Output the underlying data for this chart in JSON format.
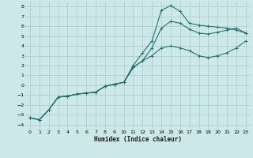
{
  "title": "",
  "xlabel": "Humidex (Indice chaleur)",
  "bg_color": "#cce8e8",
  "grid_color": "#aacccc",
  "line_color": "#1a6b6b",
  "xlim": [
    -0.5,
    23.5
  ],
  "ylim": [
    -4.5,
    8.5
  ],
  "xticks": [
    0,
    1,
    2,
    3,
    4,
    5,
    6,
    7,
    8,
    9,
    10,
    11,
    12,
    13,
    14,
    15,
    16,
    17,
    18,
    19,
    20,
    21,
    22,
    23
  ],
  "yticks": [
    -4,
    -3,
    -2,
    -1,
    0,
    1,
    2,
    3,
    4,
    5,
    6,
    7,
    8
  ],
  "line1_x": [
    0,
    1,
    2,
    3,
    4,
    5,
    6,
    7,
    8,
    9,
    10,
    11,
    12,
    13,
    14,
    15,
    16,
    17,
    18,
    19,
    20,
    21,
    22,
    23
  ],
  "line1_y": [
    -3.3,
    -3.5,
    -2.5,
    -1.2,
    -1.1,
    -0.9,
    -0.8,
    -0.7,
    -0.1,
    0.1,
    0.3,
    2.0,
    3.3,
    4.5,
    7.6,
    8.1,
    7.5,
    6.3,
    6.1,
    6.0,
    5.9,
    5.8,
    5.6,
    5.3
  ],
  "line2_x": [
    0,
    1,
    2,
    3,
    4,
    5,
    6,
    7,
    8,
    9,
    10,
    11,
    12,
    13,
    14,
    15,
    16,
    17,
    18,
    19,
    20,
    21,
    22,
    23
  ],
  "line2_y": [
    -3.3,
    -3.5,
    -2.5,
    -1.2,
    -1.1,
    -0.9,
    -0.8,
    -0.7,
    -0.1,
    0.1,
    0.3,
    1.8,
    2.5,
    3.8,
    5.8,
    6.5,
    6.3,
    5.7,
    5.3,
    5.2,
    5.4,
    5.6,
    5.8,
    5.3
  ],
  "line3_x": [
    0,
    1,
    2,
    3,
    4,
    5,
    6,
    7,
    8,
    9,
    10,
    11,
    12,
    13,
    14,
    15,
    16,
    17,
    18,
    19,
    20,
    21,
    22,
    23
  ],
  "line3_y": [
    -3.3,
    -3.5,
    -2.5,
    -1.2,
    -1.1,
    -0.9,
    -0.8,
    -0.7,
    -0.1,
    0.1,
    0.3,
    1.8,
    2.5,
    3.0,
    3.8,
    4.0,
    3.8,
    3.5,
    3.0,
    2.8,
    3.0,
    3.3,
    3.8,
    4.5
  ]
}
